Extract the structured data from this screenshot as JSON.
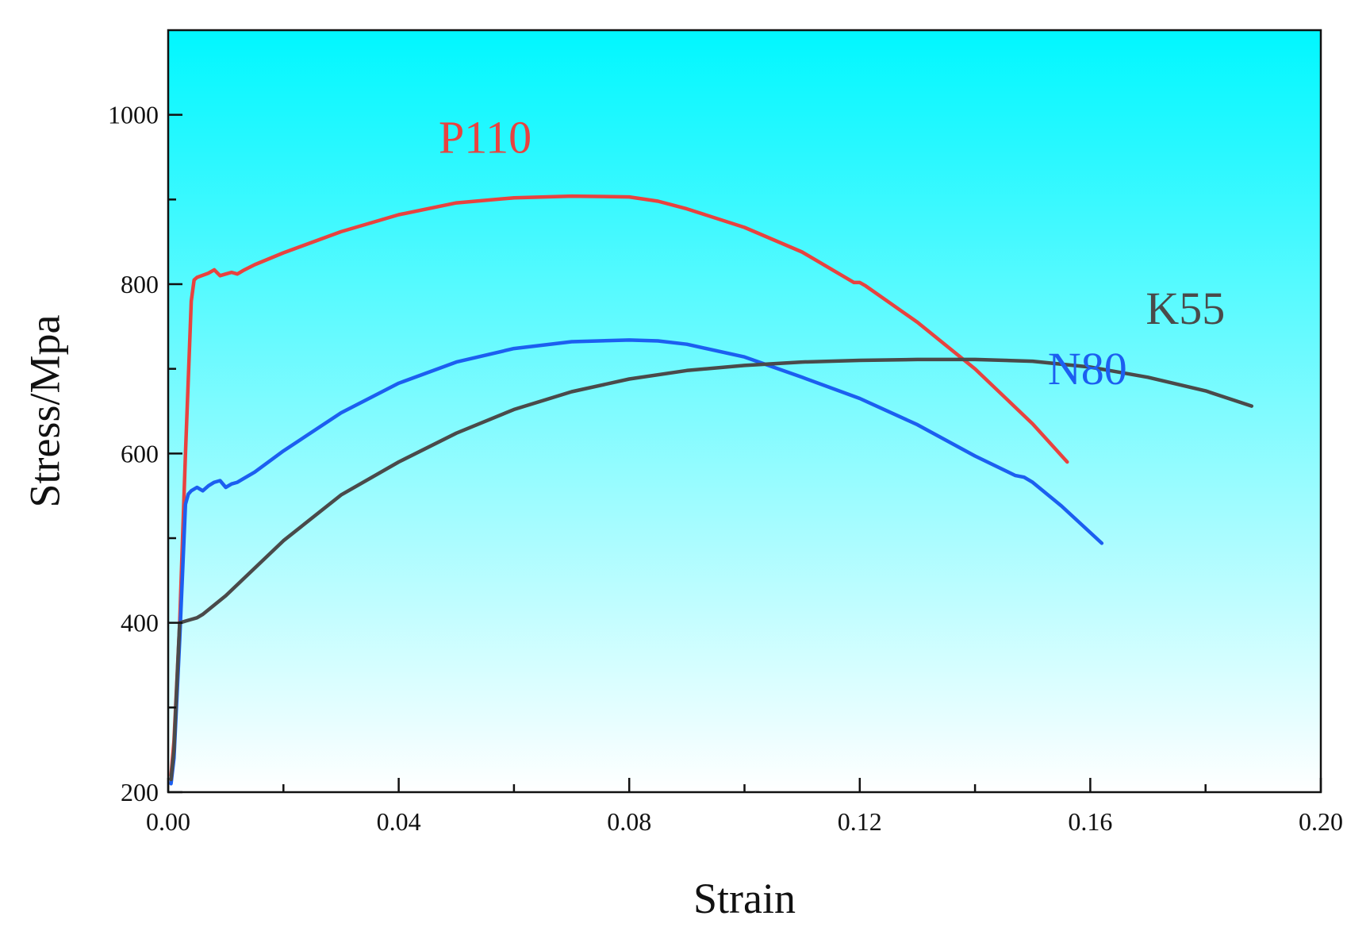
{
  "chart_data": {
    "type": "line",
    "title": "",
    "xlabel": "Strain",
    "ylabel": "Stress/Mpa",
    "xlim": [
      0.0,
      0.2
    ],
    "ylim": [
      200,
      1100
    ],
    "x_ticks": [
      "0.00",
      "0.04",
      "0.08",
      "0.12",
      "0.16",
      "0.20"
    ],
    "y_ticks": [
      "200",
      "400",
      "600",
      "800",
      "1000"
    ],
    "x_tick_values": [
      0.0,
      0.04,
      0.08,
      0.12,
      0.16,
      0.2
    ],
    "y_tick_values": [
      200,
      400,
      600,
      800,
      1000
    ],
    "x_minor_tick_values": [
      0.02,
      0.06,
      0.1,
      0.14,
      0.18
    ],
    "y_minor_tick_values": [
      300,
      500,
      700,
      900
    ],
    "background_gradient": {
      "top": "#00f7ff",
      "bottom": "#ffffff"
    },
    "grid": false,
    "series": [
      {
        "name": "P110",
        "color": "#e8423f",
        "label_at": [
          0.055,
          955
        ],
        "x": [
          0.0005,
          0.001,
          0.002,
          0.003,
          0.004,
          0.0045,
          0.005,
          0.007,
          0.008,
          0.009,
          0.01,
          0.011,
          0.012,
          0.013,
          0.015,
          0.02,
          0.03,
          0.04,
          0.05,
          0.06,
          0.07,
          0.08,
          0.085,
          0.09,
          0.1,
          0.11,
          0.119,
          0.12,
          0.121,
          0.13,
          0.14,
          0.15,
          0.156
        ],
        "y": [
          220,
          260,
          400,
          600,
          780,
          805,
          808,
          813,
          817,
          810,
          812,
          814,
          812,
          816,
          823,
          837,
          862,
          882,
          896,
          902,
          904,
          903,
          898,
          889,
          867,
          838,
          802,
          802,
          798,
          755,
          700,
          635,
          590
        ]
      },
      {
        "name": "N80",
        "color": "#1c5ff0",
        "label_at": [
          0.1595,
          682
        ],
        "x": [
          0.0005,
          0.001,
          0.002,
          0.003,
          0.0035,
          0.004,
          0.005,
          0.006,
          0.007,
          0.008,
          0.009,
          0.01,
          0.011,
          0.012,
          0.013,
          0.015,
          0.02,
          0.03,
          0.04,
          0.05,
          0.06,
          0.07,
          0.08,
          0.085,
          0.09,
          0.1,
          0.11,
          0.12,
          0.13,
          0.14,
          0.147,
          0.1485,
          0.15,
          0.155,
          0.162
        ],
        "y": [
          210,
          240,
          380,
          540,
          552,
          556,
          560,
          556,
          562,
          566,
          568,
          560,
          564,
          566,
          570,
          578,
          603,
          648,
          683,
          708,
          724,
          732,
          734,
          733,
          729,
          714,
          690,
          665,
          634,
          597,
          574,
          572,
          566,
          538,
          494
        ]
      },
      {
        "name": "K55",
        "color": "#4a4a4a",
        "label_at": [
          0.1765,
          753
        ],
        "x": [
          0.0005,
          0.001,
          0.002,
          0.003,
          0.004,
          0.005,
          0.006,
          0.01,
          0.02,
          0.03,
          0.04,
          0.05,
          0.06,
          0.07,
          0.08,
          0.09,
          0.1,
          0.11,
          0.12,
          0.13,
          0.14,
          0.15,
          0.16,
          0.17,
          0.18,
          0.188
        ],
        "y": [
          215,
          250,
          400,
          402,
          404,
          406,
          410,
          432,
          497,
          551,
          590,
          624,
          652,
          673,
          688,
          698,
          704,
          708,
          710,
          711,
          711,
          709,
          702,
          690,
          674,
          656
        ]
      }
    ]
  }
}
